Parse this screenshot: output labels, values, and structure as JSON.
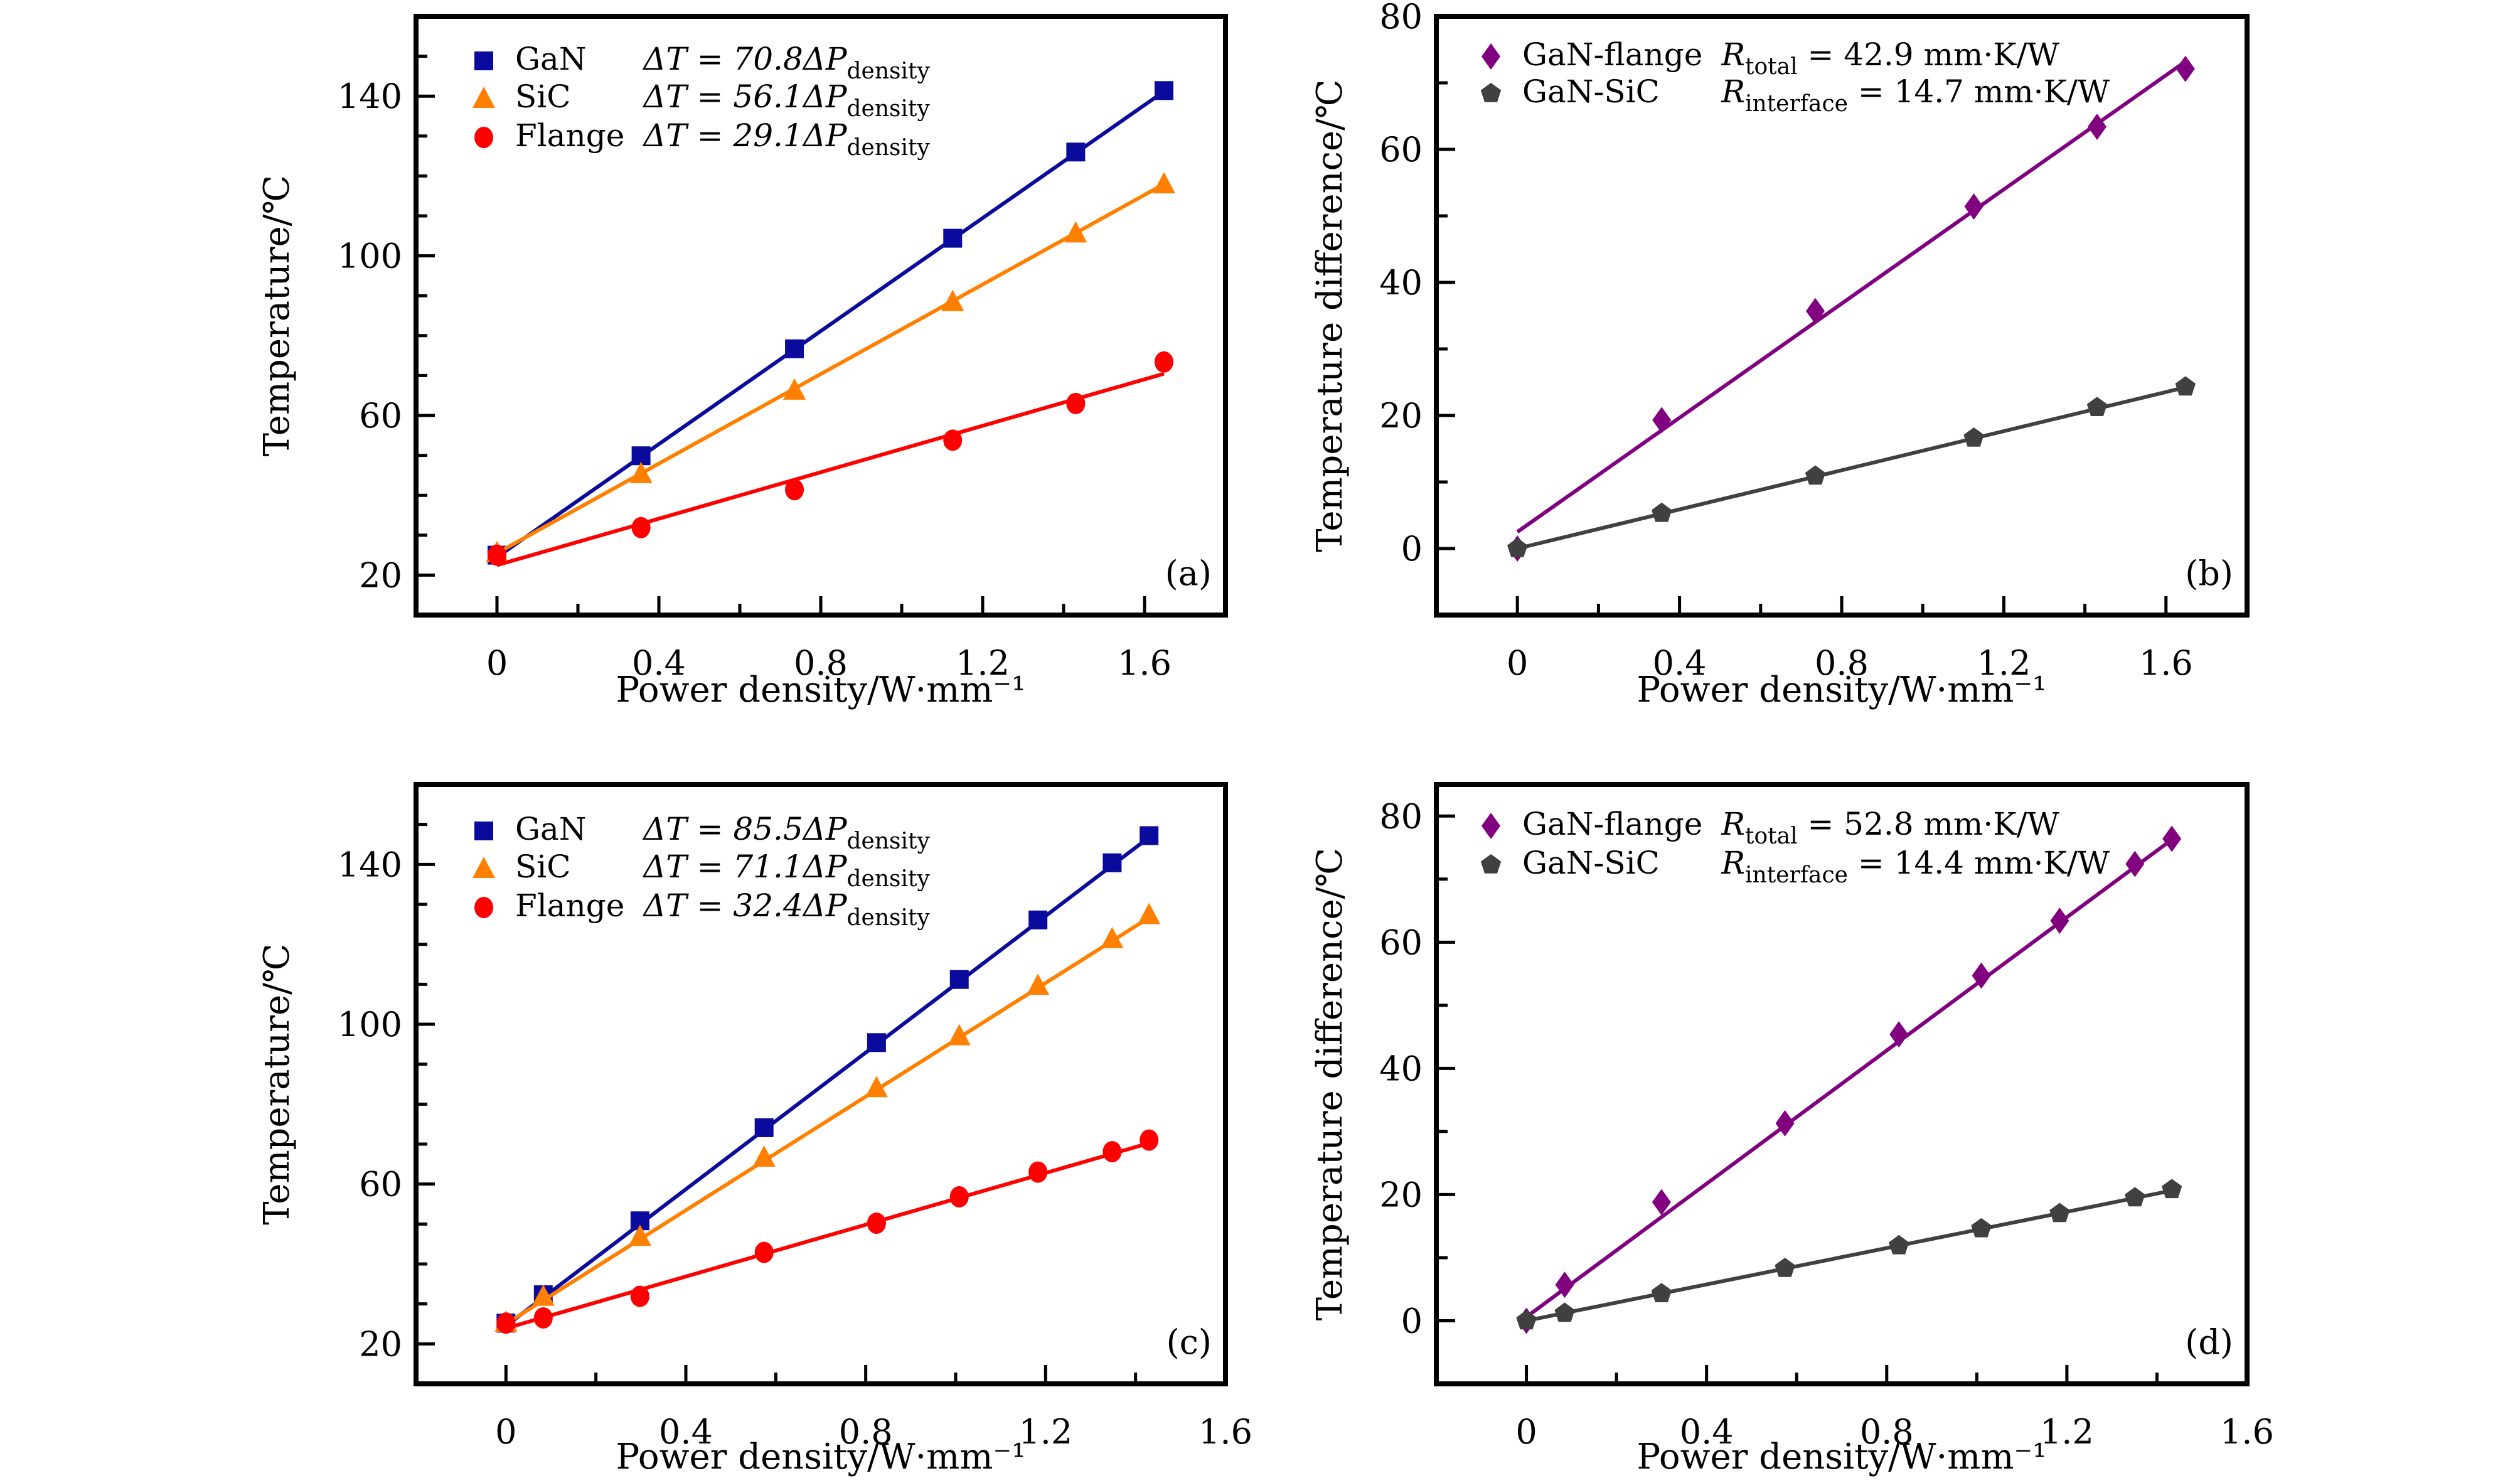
{
  "colors": {
    "GaN": "#0a0a9c",
    "SiC": "#ff8000",
    "Flange": "#ff0000",
    "GaN-flange": "#800080",
    "GaN-SiC": "#404040"
  },
  "chart_data": [
    {
      "panel": "(a)",
      "type": "scatter+line",
      "xlabel": "Power density/W·mm⁻¹",
      "ylabel": "Temperature/℃",
      "xlim": [
        -0.2,
        1.8
      ],
      "ylim": [
        10,
        160
      ],
      "xticks": [
        "0",
        "0.4",
        "0.8",
        "1.2",
        "1.6"
      ],
      "yticks": [
        "20",
        "60",
        "100",
        "140"
      ],
      "x": [
        0,
        0.356,
        0.735,
        1.126,
        1.43,
        1.648
      ],
      "series": [
        {
          "name": "GaN",
          "marker": "square",
          "color": "#0a0a9c",
          "equation": "ΔT = 70.8ΔP",
          "equation_sub": "density",
          "values": [
            25.0,
            49.9,
            76.7,
            104.4,
            126.0,
            141.4
          ],
          "fit": {
            "slope": 70.8,
            "intercept": 24.5
          }
        },
        {
          "name": "SiC",
          "marker": "triangle",
          "color": "#ff8000",
          "equation": "ΔT = 56.1ΔP",
          "equation_sub": "density",
          "values": [
            25.6,
            45.4,
            66.3,
            88.5,
            105.7,
            118.0
          ],
          "fit": {
            "slope": 56.1,
            "intercept": 25.5
          }
        },
        {
          "name": "Flange",
          "marker": "circle",
          "color": "#ff0000",
          "equation": "ΔT = 29.1ΔP",
          "equation_sub": "density",
          "values": [
            25.0,
            31.9,
            41.4,
            53.8,
            63.0,
            73.4
          ],
          "fit": {
            "slope": 29.1,
            "intercept": 22.5
          }
        }
      ]
    },
    {
      "panel": "(b)",
      "type": "scatter+line",
      "xlabel": "Power density/W·mm⁻¹",
      "ylabel": "Temperature difference/℃",
      "xlim": [
        -0.2,
        1.8
      ],
      "ylim": [
        -10,
        80
      ],
      "xticks": [
        "0",
        "0.4",
        "0.8",
        "1.2",
        "1.6"
      ],
      "yticks": [
        "0",
        "20",
        "40",
        "60",
        "80"
      ],
      "x": [
        0,
        0.356,
        0.735,
        1.126,
        1.43,
        1.648
      ],
      "series": [
        {
          "name": "GaN-flange",
          "marker": "diamond",
          "color": "#800080",
          "r_symbol": "R",
          "r_sub": "total",
          "r_value": " = 42.9 mm·K/W",
          "values": [
            0,
            19.3,
            35.7,
            51.4,
            63.4,
            72.1
          ],
          "fit": {
            "slope": 42.9,
            "intercept": 2.5
          }
        },
        {
          "name": "GaN-SiC",
          "marker": "pentagon",
          "color": "#404040",
          "r_symbol": "R",
          "r_sub": "interface",
          "r_value": " = 14.7 mm·K/W",
          "values": [
            0,
            5.3,
            10.9,
            16.6,
            21.2,
            24.3
          ],
          "fit": {
            "slope": 14.7,
            "intercept": 0
          }
        }
      ]
    },
    {
      "panel": "(c)",
      "type": "scatter+line",
      "xlabel": "Power density/W·mm⁻¹",
      "ylabel": "Temperature/℃",
      "xlim": [
        -0.2,
        1.6
      ],
      "ylim": [
        10,
        160
      ],
      "xticks": [
        "0",
        "0.4",
        "0.8",
        "1.2",
        "1.6"
      ],
      "yticks": [
        "20",
        "60",
        "100",
        "140"
      ],
      "x": [
        0,
        0.083,
        0.298,
        0.574,
        0.824,
        1.008,
        1.183,
        1.348,
        1.43
      ],
      "series": [
        {
          "name": "GaN",
          "marker": "square",
          "color": "#0a0a9c",
          "equation": "ΔT = 85.5ΔP",
          "equation_sub": "density",
          "values": [
            25.2,
            32.3,
            50.8,
            74.1,
            95.4,
            111.2,
            126.1,
            140.4,
            147.2
          ],
          "fit": {
            "slope": 85.5,
            "intercept": 24.5
          }
        },
        {
          "name": "SiC",
          "marker": "triangle",
          "color": "#ff8000",
          "equation": "ΔT = 71.1ΔP",
          "equation_sub": "density",
          "values": [
            25.4,
            31.9,
            46.9,
            66.7,
            84.1,
            97.1,
            109.7,
            121.4,
            127.4
          ],
          "fit": {
            "slope": 71.1,
            "intercept": 25.0
          }
        },
        {
          "name": "Flange",
          "marker": "circle",
          "color": "#ff0000",
          "equation": "ΔT = 32.4ΔP",
          "equation_sub": "density",
          "values": [
            25.2,
            26.5,
            31.9,
            42.9,
            50.2,
            56.8,
            63.0,
            68.1,
            71.0
          ],
          "fit": {
            "slope": 32.4,
            "intercept": 23.9
          }
        }
      ]
    },
    {
      "panel": "(d)",
      "type": "scatter+line",
      "xlabel": "Power density/W·mm⁻¹",
      "ylabel": "Temperature difference/℃",
      "xlim": [
        -0.2,
        1.6
      ],
      "ylim": [
        -10,
        85
      ],
      "xticks": [
        "0",
        "0.4",
        "0.8",
        "1.2",
        "1.6"
      ],
      "yticks": [
        "0",
        "20",
        "40",
        "60",
        "80"
      ],
      "x": [
        0,
        0.085,
        0.3,
        0.574,
        0.827,
        1.01,
        1.184,
        1.351,
        1.433
      ],
      "series": [
        {
          "name": "GaN-flange",
          "marker": "diamond",
          "color": "#800080",
          "r_symbol": "R",
          "r_sub": "total",
          "r_value": " = 52.8 mm·K/W",
          "values": [
            0,
            5.7,
            18.8,
            31.3,
            45.4,
            54.7,
            63.4,
            72.4,
            76.4
          ],
          "fit": {
            "slope": 52.8,
            "intercept": 0.6
          }
        },
        {
          "name": "GaN-SiC",
          "marker": "pentagon",
          "color": "#404040",
          "r_symbol": "R",
          "r_sub": "interface",
          "r_value": " = 14.4 mm·K/W",
          "values": [
            0,
            1.2,
            4.3,
            8.3,
            11.9,
            14.6,
            17.0,
            19.5,
            20.8
          ],
          "fit": {
            "slope": 14.4,
            "intercept": 0
          }
        }
      ]
    }
  ]
}
